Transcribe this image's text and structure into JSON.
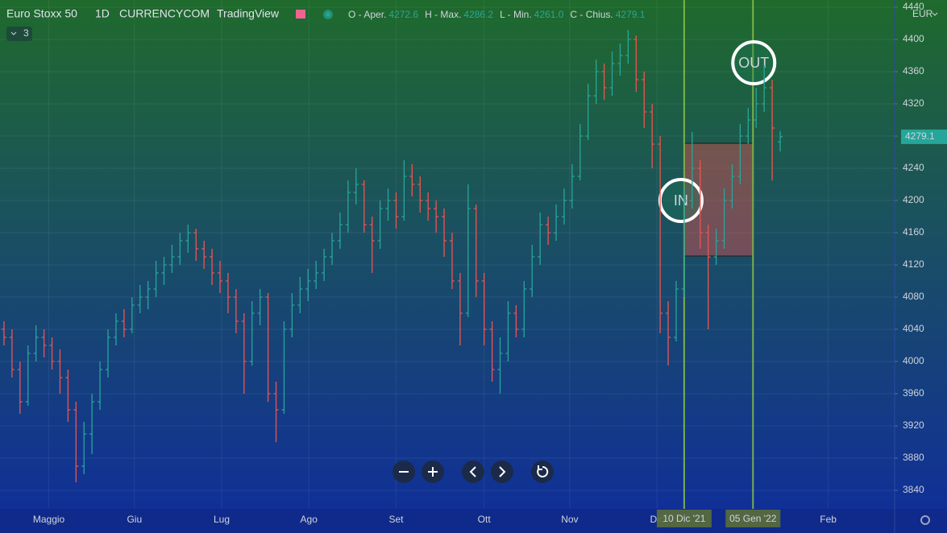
{
  "chart_data": {
    "type": "ohlc",
    "title": "Euro Stoxx 50",
    "interval": "1D",
    "source": "CURRENCYCOM",
    "platform": "TradingView",
    "header": [
      {
        "label": "O - Aper.",
        "value": "4272.6"
      },
      {
        "label": "H - Max.",
        "value": "4286.2"
      },
      {
        "label": "L - Min.",
        "value": "4261.0"
      },
      {
        "label": "C - Chius.",
        "value": "4279.1"
      }
    ],
    "indicator_count": "3",
    "currency": "EUR",
    "up_color": "#26a69a",
    "down_color": "#ef5350",
    "xlim": [
      -0.5,
      111.3
    ],
    "ylim": [
      3817,
      4449
    ],
    "yticks": [
      3840,
      3880,
      3920,
      3960,
      4000,
      4040,
      4080,
      4120,
      4160,
      4200,
      4240,
      4280,
      4320,
      4360,
      4400,
      4440
    ],
    "xticks": [
      {
        "value": 5.6,
        "label": "Maggio"
      },
      {
        "value": 16.3,
        "label": "Giu"
      },
      {
        "value": 27.2,
        "label": "Lug"
      },
      {
        "value": 38.1,
        "label": "Ago"
      },
      {
        "value": 49.0,
        "label": "Set"
      },
      {
        "value": 60.0,
        "label": "Ott"
      },
      {
        "value": 70.7,
        "label": "Nov"
      },
      {
        "value": 81.6,
        "label": "Dic"
      },
      {
        "value": 103.0,
        "label": "Feb"
      }
    ],
    "grid": true,
    "series": [
      {
        "name": "Euro Stoxx 50",
        "values": [
          [
            4040,
            4050,
            4020,
            4030
          ],
          [
            4030,
            4040,
            3980,
            3990
          ],
          [
            3990,
            4000,
            3935,
            3950
          ],
          [
            3950,
            4020,
            3945,
            4010
          ],
          [
            4010,
            4045,
            4000,
            4030
          ],
          [
            4030,
            4040,
            4005,
            4020
          ],
          [
            4020,
            4030,
            3990,
            4000
          ],
          [
            4000,
            4015,
            3960,
            3980
          ],
          [
            3980,
            3990,
            3925,
            3940
          ],
          [
            3940,
            3950,
            3850,
            3870
          ],
          [
            3870,
            3925,
            3860,
            3910
          ],
          [
            3910,
            3960,
            3885,
            3950
          ],
          [
            3950,
            4000,
            3940,
            3990
          ],
          [
            3990,
            4040,
            3980,
            4030
          ],
          [
            4030,
            4060,
            4020,
            4050
          ],
          [
            4050,
            4065,
            4030,
            4040
          ],
          [
            4040,
            4080,
            4035,
            4070
          ],
          [
            4070,
            4095,
            4060,
            4080
          ],
          [
            4080,
            4100,
            4065,
            4090
          ],
          [
            4090,
            4125,
            4080,
            4110
          ],
          [
            4110,
            4130,
            4095,
            4120
          ],
          [
            4120,
            4145,
            4110,
            4130
          ],
          [
            4130,
            4160,
            4120,
            4150
          ],
          [
            4150,
            4170,
            4135,
            4160
          ],
          [
            4160,
            4165,
            4125,
            4140
          ],
          [
            4140,
            4150,
            4115,
            4130
          ],
          [
            4130,
            4140,
            4095,
            4110
          ],
          [
            4110,
            4125,
            4085,
            4100
          ],
          [
            4100,
            4110,
            4060,
            4080
          ],
          [
            4080,
            4090,
            4035,
            4050
          ],
          [
            4050,
            4060,
            3960,
            4000
          ],
          [
            4000,
            4075,
            3995,
            4060
          ],
          [
            4060,
            4090,
            4045,
            4080
          ],
          [
            4080,
            4085,
            3950,
            3960
          ],
          [
            3960,
            3975,
            3900,
            3940
          ],
          [
            3940,
            4050,
            3935,
            4040
          ],
          [
            4040,
            4085,
            4030,
            4070
          ],
          [
            4070,
            4105,
            4060,
            4090
          ],
          [
            4090,
            4115,
            4075,
            4100
          ],
          [
            4100,
            4125,
            4090,
            4110
          ],
          [
            4110,
            4140,
            4100,
            4130
          ],
          [
            4130,
            4160,
            4120,
            4150
          ],
          [
            4150,
            4185,
            4140,
            4170
          ],
          [
            4170,
            4225,
            4160,
            4210
          ],
          [
            4210,
            4240,
            4195,
            4220
          ],
          [
            4220,
            4225,
            4160,
            4170
          ],
          [
            4170,
            4180,
            4110,
            4150
          ],
          [
            4150,
            4200,
            4140,
            4190
          ],
          [
            4190,
            4215,
            4175,
            4200
          ],
          [
            4200,
            4210,
            4165,
            4180
          ],
          [
            4180,
            4250,
            4175,
            4230
          ],
          [
            4230,
            4245,
            4205,
            4220
          ],
          [
            4220,
            4230,
            4185,
            4200
          ],
          [
            4200,
            4210,
            4175,
            4190
          ],
          [
            4190,
            4200,
            4160,
            4180
          ],
          [
            4180,
            4190,
            4130,
            4150
          ],
          [
            4150,
            4160,
            4090,
            4100
          ],
          [
            4100,
            4110,
            4020,
            4060
          ],
          [
            4060,
            4220,
            4055,
            4190
          ],
          [
            4190,
            4195,
            4080,
            4100
          ],
          [
            4100,
            4110,
            4020,
            4040
          ],
          [
            4040,
            4050,
            3975,
            3990
          ],
          [
            3990,
            4030,
            3960,
            4010
          ],
          [
            4010,
            4075,
            4000,
            4060
          ],
          [
            4060,
            4070,
            4030,
            4040
          ],
          [
            4040,
            4100,
            4030,
            4090
          ],
          [
            4090,
            4145,
            4080,
            4130
          ],
          [
            4130,
            4185,
            4120,
            4170
          ],
          [
            4170,
            4180,
            4145,
            4160
          ],
          [
            4160,
            4195,
            4150,
            4180
          ],
          [
            4180,
            4215,
            4170,
            4200
          ],
          [
            4200,
            4245,
            4190,
            4230
          ],
          [
            4230,
            4295,
            4225,
            4280
          ],
          [
            4280,
            4345,
            4275,
            4330
          ],
          [
            4330,
            4375,
            4320,
            4360
          ],
          [
            4360,
            4370,
            4325,
            4340
          ],
          [
            4340,
            4385,
            4330,
            4370
          ],
          [
            4370,
            4395,
            4355,
            4380
          ],
          [
            4380,
            4412,
            4370,
            4400
          ],
          [
            4400,
            4405,
            4335,
            4350
          ],
          [
            4350,
            4360,
            4290,
            4310
          ],
          [
            4310,
            4320,
            4240,
            4270
          ],
          [
            4270,
            4280,
            4035,
            4060
          ],
          [
            4060,
            4075,
            3995,
            4030
          ],
          [
            4030,
            4100,
            4025,
            4090
          ],
          [
            4090,
            4215,
            4080,
            4200
          ],
          [
            4200,
            4285,
            4190,
            4240
          ],
          [
            4240,
            4250,
            4140,
            4160
          ],
          [
            4160,
            4170,
            4040,
            4130
          ],
          [
            4130,
            4165,
            4120,
            4150
          ],
          [
            4150,
            4215,
            4140,
            4200
          ],
          [
            4200,
            4245,
            4190,
            4230
          ],
          [
            4230,
            4295,
            4220,
            4280
          ],
          [
            4280,
            4315,
            4270,
            4300
          ],
          [
            4300,
            4340,
            4290,
            4320
          ],
          [
            4320,
            4368,
            4310,
            4340
          ],
          [
            4340,
            4350,
            4225,
            4290
          ],
          [
            4272.6,
            4286.2,
            4261,
            4279.1
          ]
        ]
      }
    ],
    "markers": [
      {
        "label": "10 Dic '21",
        "x": 85,
        "color": "#8bc34a"
      },
      {
        "label": "05 Gen '22",
        "x": 93.6,
        "color": "#8bc34a"
      }
    ],
    "box": {
      "x": [
        85,
        93.6
      ],
      "y": [
        4131,
        4271
      ],
      "color": "#e05050"
    },
    "annotations": [
      {
        "text": "IN",
        "x": 84.6,
        "y": 4200
      },
      {
        "text": "OUT",
        "x": 93.7,
        "y": 4371
      }
    ]
  }
}
